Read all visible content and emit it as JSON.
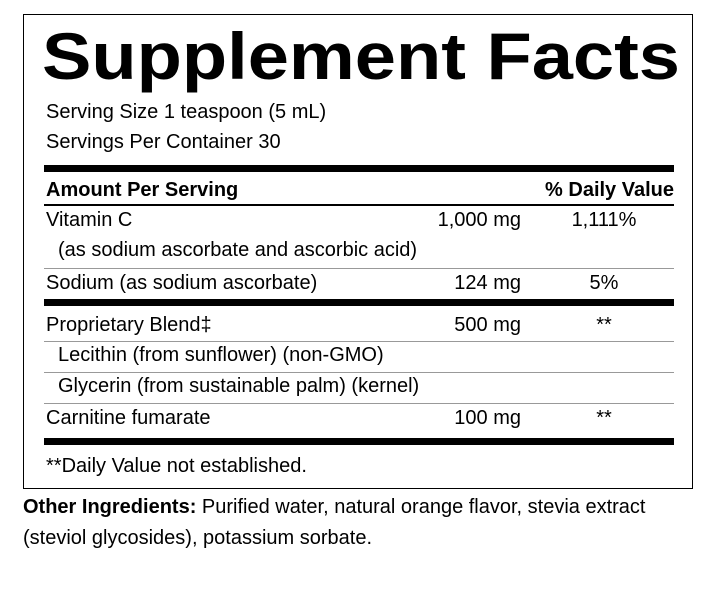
{
  "title": "Supplement Facts",
  "serving_size": "Serving Size 1 teaspoon (5 mL)",
  "servings_per_container": "Servings Per Container 30",
  "table": {
    "header": [
      "Amount Per Serving",
      "% Daily Value"
    ],
    "rows": [
      [
        "Vitamin C",
        "1,000 mg",
        "1,111%"
      ],
      [
        "(as sodium ascorbate and ascorbic acid)"
      ],
      [
        "Sodium (as sodium ascorbate)",
        "124 mg",
        "5%"
      ],
      [
        "Proprietary Blend‡",
        "500 mg",
        "**"
      ],
      [
        "Lecithin (from sunflower) (non-GMO)"
      ],
      [
        "Glycerin (from sustainable palm) (kernel)"
      ],
      [
        "Carnitine fumarate",
        "100 mg",
        "**"
      ]
    ]
  },
  "footnote": "**Daily Value not established.",
  "other_ingredients": {
    "label": "Other Ingredients:",
    "text": "Purified water, natural orange flavor, stevia extract (steviol glycosides), potassium sorbate."
  }
}
